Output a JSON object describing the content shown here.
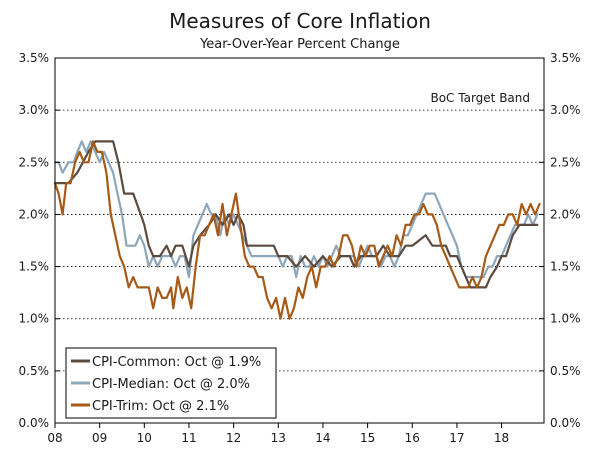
{
  "chart_data": {
    "type": "line",
    "title": "Measures of Core Inflation",
    "subtitle": "Year-Over-Year Percent Change",
    "xlabel": "",
    "ylabel": "",
    "ylim": [
      0,
      3.5
    ],
    "xlim": [
      2008,
      2018.95
    ],
    "grid": true,
    "yticks": [
      0,
      0.5,
      1.0,
      1.5,
      2.0,
      2.5,
      3.0,
      3.5
    ],
    "ytick_labels": [
      "0.0%",
      "0.5%",
      "1.0%",
      "1.5%",
      "2.0%",
      "2.5%",
      "3.0%",
      "3.5%"
    ],
    "xticks": [
      2008,
      2009,
      2010,
      2011,
      2012,
      2013,
      2014,
      2015,
      2016,
      2017,
      2018
    ],
    "xtick_labels": [
      "08",
      "09",
      "10",
      "11",
      "12",
      "13",
      "14",
      "15",
      "16",
      "17",
      "18"
    ],
    "reference_line": {
      "y": 3.0,
      "style": "dotted",
      "label": "BoC Target Band"
    },
    "legend_position": "bottom-left",
    "colors": {
      "common": "#5a4a3f",
      "median": "#8ea6ba",
      "trim": "#a65a17"
    },
    "series": [
      {
        "name": "CPI-Common: Oct @ 1.9%",
        "key": "common",
        "color": "#5a4a3f",
        "points": [
          [
            2008.0,
            2.3
          ],
          [
            2008.3,
            2.3
          ],
          [
            2008.5,
            2.4
          ],
          [
            2008.75,
            2.6
          ],
          [
            2008.9,
            2.7
          ],
          [
            2009.3,
            2.7
          ],
          [
            2009.42,
            2.5
          ],
          [
            2009.55,
            2.2
          ],
          [
            2009.75,
            2.2
          ],
          [
            2009.92,
            2.0
          ],
          [
            2010.0,
            1.9
          ],
          [
            2010.1,
            1.7
          ],
          [
            2010.2,
            1.6
          ],
          [
            2010.35,
            1.6
          ],
          [
            2010.5,
            1.7
          ],
          [
            2010.6,
            1.6
          ],
          [
            2010.7,
            1.7
          ],
          [
            2010.85,
            1.7
          ],
          [
            2011.0,
            1.5
          ],
          [
            2011.1,
            1.7
          ],
          [
            2011.25,
            1.8
          ],
          [
            2011.45,
            1.9
          ],
          [
            2011.6,
            2.0
          ],
          [
            2011.75,
            1.9
          ],
          [
            2011.9,
            2.0
          ],
          [
            2012.0,
            1.9
          ],
          [
            2012.1,
            2.0
          ],
          [
            2012.22,
            1.9
          ],
          [
            2012.3,
            1.7
          ],
          [
            2012.6,
            1.7
          ],
          [
            2012.9,
            1.7
          ],
          [
            2013.0,
            1.6
          ],
          [
            2013.2,
            1.6
          ],
          [
            2013.4,
            1.5
          ],
          [
            2013.6,
            1.6
          ],
          [
            2013.8,
            1.5
          ],
          [
            2014.0,
            1.6
          ],
          [
            2014.2,
            1.5
          ],
          [
            2014.4,
            1.6
          ],
          [
            2014.6,
            1.6
          ],
          [
            2014.7,
            1.5
          ],
          [
            2014.85,
            1.6
          ],
          [
            2015.0,
            1.6
          ],
          [
            2015.2,
            1.6
          ],
          [
            2015.35,
            1.7
          ],
          [
            2015.5,
            1.6
          ],
          [
            2015.7,
            1.6
          ],
          [
            2015.85,
            1.7
          ],
          [
            2016.0,
            1.7
          ],
          [
            2016.3,
            1.8
          ],
          [
            2016.45,
            1.7
          ],
          [
            2016.75,
            1.7
          ],
          [
            2016.85,
            1.6
          ],
          [
            2017.0,
            1.6
          ],
          [
            2017.2,
            1.4
          ],
          [
            2017.3,
            1.3
          ],
          [
            2017.65,
            1.3
          ],
          [
            2017.75,
            1.4
          ],
          [
            2017.9,
            1.5
          ],
          [
            2018.0,
            1.6
          ],
          [
            2018.1,
            1.6
          ],
          [
            2018.25,
            1.8
          ],
          [
            2018.4,
            1.9
          ],
          [
            2018.6,
            1.9
          ],
          [
            2018.7,
            1.9
          ],
          [
            2018.8,
            1.9
          ]
        ]
      },
      {
        "name": "CPI-Median: Oct @ 2.0%",
        "key": "median",
        "color": "#8ea6ba",
        "points": [
          [
            2008.0,
            2.5
          ],
          [
            2008.08,
            2.5
          ],
          [
            2008.17,
            2.4
          ],
          [
            2008.3,
            2.5
          ],
          [
            2008.42,
            2.5
          ],
          [
            2008.5,
            2.6
          ],
          [
            2008.6,
            2.7
          ],
          [
            2008.7,
            2.6
          ],
          [
            2008.8,
            2.7
          ],
          [
            2008.9,
            2.6
          ],
          [
            2009.0,
            2.5
          ],
          [
            2009.1,
            2.6
          ],
          [
            2009.2,
            2.5
          ],
          [
            2009.3,
            2.4
          ],
          [
            2009.4,
            2.2
          ],
          [
            2009.5,
            2.0
          ],
          [
            2009.6,
            1.7
          ],
          [
            2009.8,
            1.7
          ],
          [
            2009.9,
            1.8
          ],
          [
            2010.0,
            1.7
          ],
          [
            2010.1,
            1.5
          ],
          [
            2010.2,
            1.6
          ],
          [
            2010.3,
            1.5
          ],
          [
            2010.4,
            1.6
          ],
          [
            2010.5,
            1.6
          ],
          [
            2010.6,
            1.6
          ],
          [
            2010.7,
            1.5
          ],
          [
            2010.8,
            1.6
          ],
          [
            2010.9,
            1.6
          ],
          [
            2011.0,
            1.4
          ],
          [
            2011.1,
            1.8
          ],
          [
            2011.2,
            1.9
          ],
          [
            2011.3,
            2.0
          ],
          [
            2011.4,
            2.1
          ],
          [
            2011.5,
            2.0
          ],
          [
            2011.6,
            2.0
          ],
          [
            2011.7,
            1.8
          ],
          [
            2011.8,
            2.0
          ],
          [
            2011.9,
            1.9
          ],
          [
            2012.0,
            2.0
          ],
          [
            2012.1,
            1.9
          ],
          [
            2012.2,
            1.8
          ],
          [
            2012.3,
            1.7
          ],
          [
            2012.4,
            1.6
          ],
          [
            2012.6,
            1.6
          ],
          [
            2012.8,
            1.6
          ],
          [
            2013.0,
            1.6
          ],
          [
            2013.1,
            1.5
          ],
          [
            2013.2,
            1.6
          ],
          [
            2013.3,
            1.6
          ],
          [
            2013.4,
            1.4
          ],
          [
            2013.5,
            1.6
          ],
          [
            2013.6,
            1.5
          ],
          [
            2013.7,
            1.5
          ],
          [
            2013.8,
            1.6
          ],
          [
            2013.9,
            1.5
          ],
          [
            2014.0,
            1.6
          ],
          [
            2014.1,
            1.5
          ],
          [
            2014.2,
            1.6
          ],
          [
            2014.3,
            1.7
          ],
          [
            2014.4,
            1.6
          ],
          [
            2014.5,
            1.6
          ],
          [
            2014.6,
            1.6
          ],
          [
            2014.7,
            1.6
          ],
          [
            2014.8,
            1.5
          ],
          [
            2015.0,
            1.7
          ],
          [
            2015.1,
            1.6
          ],
          [
            2015.2,
            1.6
          ],
          [
            2015.3,
            1.5
          ],
          [
            2015.4,
            1.6
          ],
          [
            2015.5,
            1.6
          ],
          [
            2015.6,
            1.5
          ],
          [
            2015.7,
            1.6
          ],
          [
            2015.8,
            1.8
          ],
          [
            2015.9,
            1.8
          ],
          [
            2016.0,
            1.9
          ],
          [
            2016.1,
            2.0
          ],
          [
            2016.2,
            2.1
          ],
          [
            2016.3,
            2.2
          ],
          [
            2016.5,
            2.2
          ],
          [
            2016.6,
            2.1
          ],
          [
            2016.7,
            2.0
          ],
          [
            2016.8,
            1.9
          ],
          [
            2016.9,
            1.8
          ],
          [
            2017.0,
            1.7
          ],
          [
            2017.1,
            1.5
          ],
          [
            2017.2,
            1.4
          ],
          [
            2017.3,
            1.4
          ],
          [
            2017.4,
            1.4
          ],
          [
            2017.5,
            1.4
          ],
          [
            2017.6,
            1.4
          ],
          [
            2017.7,
            1.5
          ],
          [
            2017.8,
            1.5
          ],
          [
            2017.9,
            1.6
          ],
          [
            2018.0,
            1.6
          ],
          [
            2018.1,
            1.7
          ],
          [
            2018.2,
            1.8
          ],
          [
            2018.3,
            1.9
          ],
          [
            2018.5,
            1.9
          ],
          [
            2018.6,
            2.0
          ],
          [
            2018.7,
            1.9
          ],
          [
            2018.8,
            2.0
          ]
        ]
      },
      {
        "name": "CPI-Trim: Oct @ 2.1%",
        "key": "trim",
        "color": "#a65a17",
        "points": [
          [
            2008.0,
            2.3
          ],
          [
            2008.08,
            2.2
          ],
          [
            2008.17,
            2.0
          ],
          [
            2008.25,
            2.3
          ],
          [
            2008.35,
            2.3
          ],
          [
            2008.45,
            2.5
          ],
          [
            2008.55,
            2.6
          ],
          [
            2008.65,
            2.5
          ],
          [
            2008.75,
            2.5
          ],
          [
            2008.85,
            2.7
          ],
          [
            2008.95,
            2.6
          ],
          [
            2009.05,
            2.6
          ],
          [
            2009.15,
            2.4
          ],
          [
            2009.25,
            2.0
          ],
          [
            2009.35,
            1.8
          ],
          [
            2009.45,
            1.6
          ],
          [
            2009.55,
            1.5
          ],
          [
            2009.65,
            1.3
          ],
          [
            2009.75,
            1.4
          ],
          [
            2009.85,
            1.3
          ],
          [
            2010.0,
            1.3
          ],
          [
            2010.1,
            1.3
          ],
          [
            2010.2,
            1.1
          ],
          [
            2010.3,
            1.3
          ],
          [
            2010.4,
            1.2
          ],
          [
            2010.5,
            1.2
          ],
          [
            2010.6,
            1.3
          ],
          [
            2010.65,
            1.1
          ],
          [
            2010.75,
            1.4
          ],
          [
            2010.85,
            1.2
          ],
          [
            2010.95,
            1.3
          ],
          [
            2011.05,
            1.1
          ],
          [
            2011.15,
            1.5
          ],
          [
            2011.25,
            1.8
          ],
          [
            2011.35,
            1.8
          ],
          [
            2011.45,
            1.9
          ],
          [
            2011.55,
            2.0
          ],
          [
            2011.65,
            1.8
          ],
          [
            2011.75,
            2.1
          ],
          [
            2011.85,
            1.8
          ],
          [
            2011.95,
            2.0
          ],
          [
            2012.05,
            2.2
          ],
          [
            2012.15,
            1.9
          ],
          [
            2012.25,
            1.6
          ],
          [
            2012.35,
            1.5
          ],
          [
            2012.45,
            1.5
          ],
          [
            2012.55,
            1.4
          ],
          [
            2012.65,
            1.4
          ],
          [
            2012.75,
            1.2
          ],
          [
            2012.85,
            1.1
          ],
          [
            2012.95,
            1.2
          ],
          [
            2013.05,
            1.0
          ],
          [
            2013.15,
            1.2
          ],
          [
            2013.25,
            1.0
          ],
          [
            2013.35,
            1.1
          ],
          [
            2013.45,
            1.3
          ],
          [
            2013.55,
            1.2
          ],
          [
            2013.65,
            1.4
          ],
          [
            2013.75,
            1.5
          ],
          [
            2013.85,
            1.3
          ],
          [
            2013.95,
            1.5
          ],
          [
            2014.05,
            1.5
          ],
          [
            2014.15,
            1.6
          ],
          [
            2014.25,
            1.5
          ],
          [
            2014.35,
            1.6
          ],
          [
            2014.45,
            1.8
          ],
          [
            2014.55,
            1.8
          ],
          [
            2014.65,
            1.7
          ],
          [
            2014.75,
            1.5
          ],
          [
            2014.85,
            1.7
          ],
          [
            2014.95,
            1.6
          ],
          [
            2015.05,
            1.7
          ],
          [
            2015.15,
            1.7
          ],
          [
            2015.25,
            1.5
          ],
          [
            2015.35,
            1.6
          ],
          [
            2015.45,
            1.7
          ],
          [
            2015.55,
            1.6
          ],
          [
            2015.65,
            1.8
          ],
          [
            2015.75,
            1.7
          ],
          [
            2015.85,
            1.9
          ],
          [
            2015.95,
            1.9
          ],
          [
            2016.05,
            2.0
          ],
          [
            2016.15,
            2.0
          ],
          [
            2016.25,
            2.1
          ],
          [
            2016.35,
            2.0
          ],
          [
            2016.45,
            2.0
          ],
          [
            2016.55,
            1.9
          ],
          [
            2016.65,
            1.7
          ],
          [
            2016.75,
            1.6
          ],
          [
            2016.85,
            1.5
          ],
          [
            2016.95,
            1.4
          ],
          [
            2017.05,
            1.3
          ],
          [
            2017.15,
            1.3
          ],
          [
            2017.25,
            1.3
          ],
          [
            2017.35,
            1.4
          ],
          [
            2017.45,
            1.3
          ],
          [
            2017.55,
            1.4
          ],
          [
            2017.65,
            1.6
          ],
          [
            2017.75,
            1.7
          ],
          [
            2017.85,
            1.8
          ],
          [
            2017.95,
            1.9
          ],
          [
            2018.05,
            1.9
          ],
          [
            2018.15,
            2.0
          ],
          [
            2018.25,
            2.0
          ],
          [
            2018.35,
            1.9
          ],
          [
            2018.45,
            2.1
          ],
          [
            2018.55,
            2.0
          ],
          [
            2018.65,
            2.1
          ],
          [
            2018.75,
            2.0
          ],
          [
            2018.85,
            2.1
          ]
        ]
      }
    ]
  }
}
